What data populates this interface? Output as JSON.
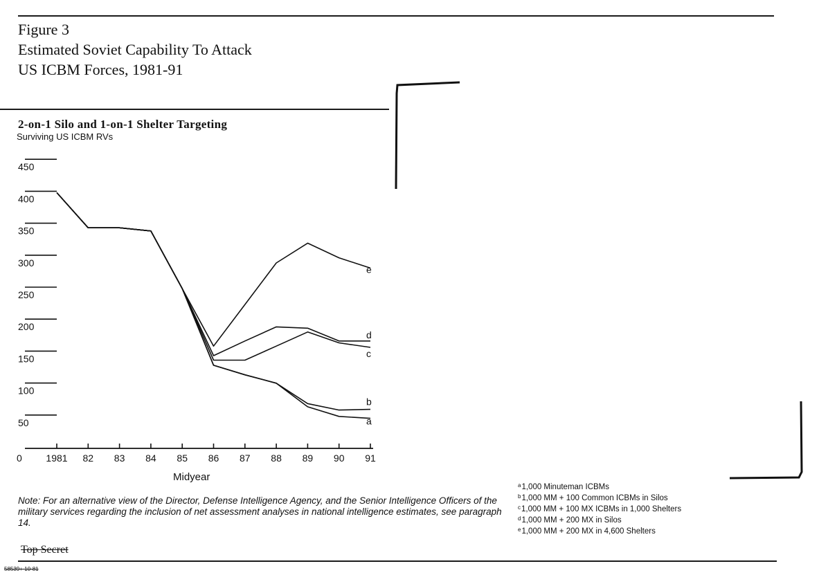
{
  "figure": {
    "title_lines": [
      "Figure 3",
      "Estimated Soviet Capability To Attack",
      "US ICBM Forces, 1981-91"
    ],
    "subtitle": "2-on-1 Silo and 1-on-1 Shelter Targeting",
    "ylabel": "Surviving US ICBM RVs",
    "xlabel": "Midyear",
    "note": "Note: For an alternative view of the Director, Defense Intelligence Agency, and the Senior Intelligence Officers of the military services regarding the inclusion of net assessment analyses in national intelligence estimates, see paragraph 14.",
    "classification": "Top Secret",
    "control_number": "58539+ 10-81"
  },
  "legend": [
    {
      "key": "a",
      "text": "1,000 Minuteman ICBMs"
    },
    {
      "key": "b",
      "text": "1,000 MM + 100 Common ICBMs in Silos"
    },
    {
      "key": "c",
      "text": "1,000 MM + 100 MX ICBMs in 1,000 Shelters"
    },
    {
      "key": "d",
      "text": "1,000 MM + 200 MX in Silos"
    },
    {
      "key": "e",
      "text": "1,000 MM + 200 MX in 4,600 Shelters"
    }
  ],
  "chart_data": {
    "type": "line",
    "title": "2-on-1 Silo and 1-on-1 Shelter Targeting",
    "xlabel": "Midyear",
    "ylabel": "Surviving US ICBM RVs",
    "x": [
      1981,
      1982,
      1983,
      1984,
      1985,
      1986,
      1987,
      1988,
      1989,
      1990,
      1991
    ],
    "x_tick_labels": [
      "1981",
      "82",
      "83",
      "84",
      "85",
      "86",
      "87",
      "88",
      "89",
      "90",
      "91"
    ],
    "y_ticks": [
      0,
      50,
      100,
      150,
      200,
      250,
      300,
      350,
      400,
      450
    ],
    "y_tick_labels": [
      "0",
      "50",
      "100",
      "150",
      "200",
      "250",
      "300",
      "350",
      "400",
      "450"
    ],
    "ylim": [
      0,
      450
    ],
    "xlim": [
      1981,
      1991
    ],
    "grid": false,
    "legend_position": "bottom-right",
    "series": [
      {
        "name": "a",
        "values": [
          400,
          345,
          345,
          340,
          250,
          130,
          115,
          102,
          65,
          50,
          47
        ]
      },
      {
        "name": "b",
        "values": [
          400,
          345,
          345,
          340,
          250,
          130,
          115,
          102,
          70,
          60,
          61
        ]
      },
      {
        "name": "c",
        "values": [
          400,
          345,
          345,
          340,
          250,
          138,
          138,
          160,
          182,
          165,
          158
        ]
      },
      {
        "name": "d",
        "values": [
          400,
          345,
          345,
          340,
          250,
          145,
          168,
          190,
          188,
          168,
          168
        ]
      },
      {
        "name": "e",
        "values": [
          400,
          345,
          345,
          340,
          250,
          160,
          225,
          290,
          321,
          298,
          282
        ]
      }
    ]
  }
}
